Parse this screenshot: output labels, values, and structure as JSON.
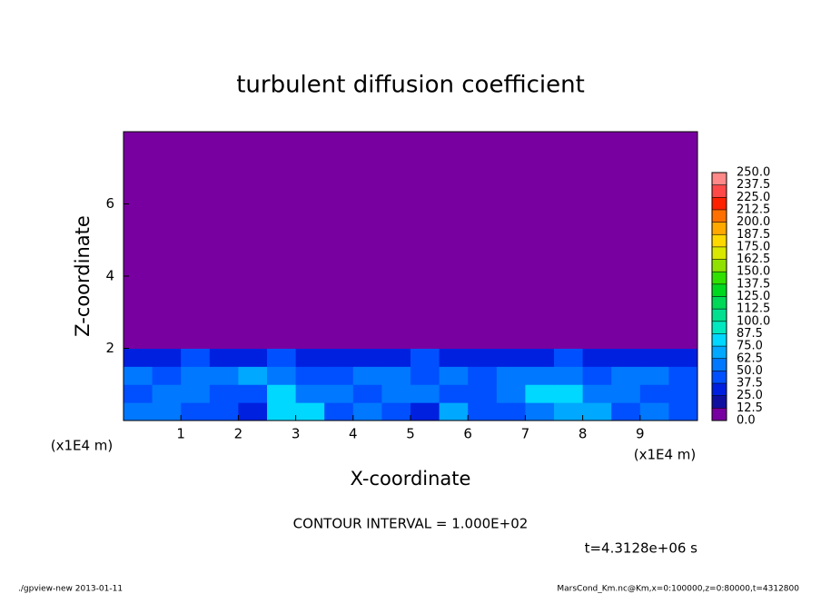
{
  "chart_data": {
    "type": "heatmap",
    "title": "turbulent diffusion coefficient",
    "xlabel": "X-coordinate",
    "ylabel": "Z-coordinate",
    "xunit": "(x1E4 m)",
    "xunit_right": "(x1E4 m)",
    "contour_note": "CONTOUR INTERVAL = 1.000E+02",
    "time_label": "t=4.3128e+06 s",
    "footer_left": "./gpview-new  2013-01-11",
    "footer_right": "MarsCond_Km.nc@Km,x=0:100000,z=0:80000,t=4312800",
    "xlim": [
      0,
      10
    ],
    "xticks": [
      1,
      2,
      3,
      4,
      5,
      6,
      7,
      8,
      9
    ],
    "ylim": [
      0,
      8
    ],
    "yticks": [
      2,
      4,
      6
    ],
    "x_edges": [
      0,
      0.5,
      1,
      1.5,
      2,
      2.5,
      3,
      3.5,
      4,
      4.5,
      5,
      5.5,
      6,
      6.5,
      7,
      7.5,
      8,
      8.5,
      9,
      9.5,
      10
    ],
    "z_edges": [
      0,
      0.5,
      1,
      1.5,
      2,
      8
    ],
    "values": [
      [
        50,
        62,
        40,
        45,
        30,
        80,
        75,
        45,
        55,
        40,
        35,
        70,
        45,
        40,
        55,
        70,
        65,
        45,
        55,
        40
      ],
      [
        45,
        55,
        60,
        40,
        45,
        85,
        50,
        55,
        45,
        50,
        60,
        40,
        45,
        55,
        75,
        80,
        60,
        50,
        40,
        45
      ],
      [
        55,
        45,
        50,
        60,
        70,
        50,
        40,
        45,
        50,
        55,
        45,
        50,
        40,
        60,
        55,
        50,
        45,
        50,
        55,
        45
      ],
      [
        30,
        35,
        40,
        30,
        35,
        40,
        30,
        35,
        30,
        35,
        40,
        30,
        35,
        30,
        35,
        40,
        30,
        35,
        30,
        35
      ],
      [
        0,
        0,
        0,
        0,
        0,
        0,
        0,
        0,
        0,
        0,
        0,
        0,
        0,
        0,
        0,
        0,
        0,
        0,
        0,
        0
      ]
    ],
    "levels": [
      {
        "value": 0,
        "label": "0.0"
      },
      {
        "value": 12.5,
        "label": "12.5"
      },
      {
        "value": 25,
        "label": "25.0"
      },
      {
        "value": 37.5,
        "label": "37.5"
      },
      {
        "value": 50,
        "label": "50.0"
      },
      {
        "value": 62.5,
        "label": "62.5"
      },
      {
        "value": 75,
        "label": "75.0"
      },
      {
        "value": 87.5,
        "label": "87.5"
      },
      {
        "value": 100,
        "label": "100.0"
      },
      {
        "value": 112.5,
        "label": "112.5"
      },
      {
        "value": 125,
        "label": "125.0"
      },
      {
        "value": 137.5,
        "label": "137.5"
      },
      {
        "value": 150,
        "label": "150.0"
      },
      {
        "value": 162.5,
        "label": "162.5"
      },
      {
        "value": 175,
        "label": "175.0"
      },
      {
        "value": 187.5,
        "label": "187.5"
      },
      {
        "value": 200,
        "label": "200.0"
      },
      {
        "value": 212.5,
        "label": "212.5"
      },
      {
        "value": 225,
        "label": "225.0"
      },
      {
        "value": 237.5,
        "label": "237.5"
      },
      {
        "value": 250,
        "label": "250.0"
      }
    ],
    "colors": [
      "#7800a0",
      "#1010a0",
      "#0020e0",
      "#0050ff",
      "#0078ff",
      "#00a8ff",
      "#00d8ff",
      "#00e8c0",
      "#00e090",
      "#00d858",
      "#00d820",
      "#30e000",
      "#90e000",
      "#d8e800",
      "#ffd800",
      "#ffa800",
      "#ff7000",
      "#ff2000",
      "#ff4848",
      "#ff8888"
    ]
  }
}
